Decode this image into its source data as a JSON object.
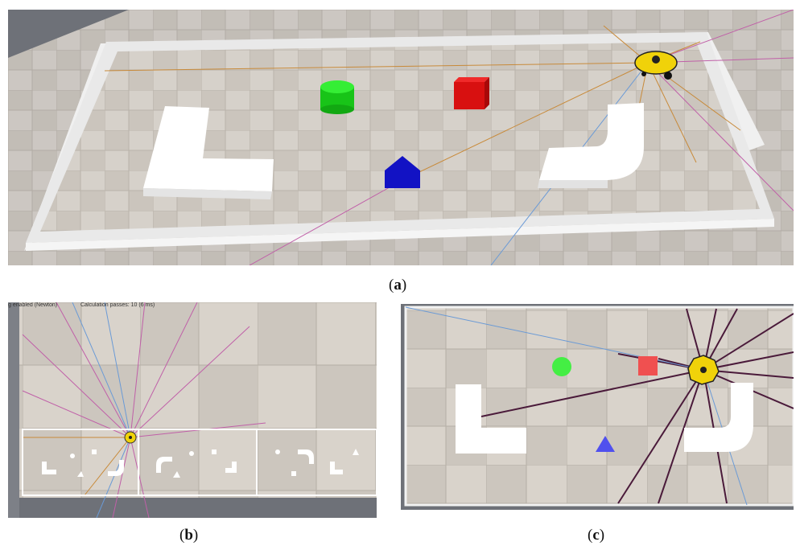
{
  "captions": {
    "a": "a",
    "b": "b",
    "c": "c"
  },
  "panel_b": {
    "status_left": "g enabled (Newton)",
    "status_right": "Calculation passes: 10 (6 ms)"
  },
  "colors": {
    "floor_light": "#d8d3cc",
    "floor_dark": "#c9c3bb",
    "background_gray": "#6e7178",
    "wall": "#f2f2f2",
    "green_cylinder": "#22dd22",
    "red_cube": "#e01414",
    "blue_pentagon": "#1414cc",
    "robot_yellow": "#f0d20a",
    "sensor_orange": "#c88a3a",
    "sensor_pink": "#c060a8",
    "sensor_blue": "#6a9ad6",
    "sensor_dark": "#4a1a3a"
  },
  "objects": {
    "l_block": "l-shaped-wall",
    "j_block": "j-shaped-wall",
    "cylinder": "green-cylinder",
    "cube": "red-cube",
    "pentagon": "blue-pentagon",
    "robot": "robot-with-lidar"
  }
}
